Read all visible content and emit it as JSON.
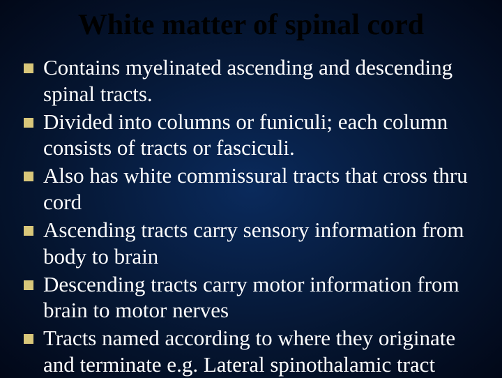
{
  "title": "White matter of spinal cord",
  "bullets": [
    "Contains myelinated ascending and descending spinal tracts.",
    "Divided into columns or funiculi; each column consists of tracts or fasciculi.",
    "Also has white commissural tracts that cross thru cord",
    "Ascending tracts carry sensory information from body to brain",
    "Descending tracts carry motor information from brain to motor nerves",
    "Tracts named according to where they originate and terminate e.g. Lateral spinothalamic tract"
  ],
  "colors": {
    "title": "#000000",
    "body_text": "#ffffff",
    "bullet": "#d9c77a",
    "bg_center": "#0a2a5c",
    "bg_edge": "#020818"
  }
}
